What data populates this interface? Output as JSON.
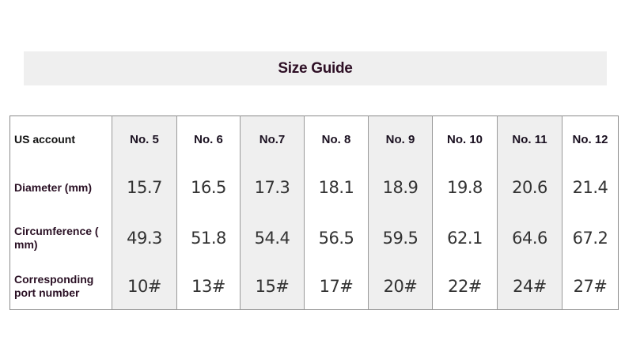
{
  "title": "Size Guide",
  "table": {
    "row_headers": [
      "US account",
      "Diameter (mm)",
      "Circumference ( mm)",
      "Corresponding port number"
    ],
    "columns": [
      "No. 5",
      "No. 6",
      "No.7",
      "No. 8",
      "No. 9",
      "No. 10",
      "No. 11",
      "No. 12"
    ],
    "diameter": [
      "15.7",
      "16.5",
      "17.3",
      "18.1",
      "18.9",
      "19.8",
      "20.6",
      "21.4"
    ],
    "circumference": [
      "49.3",
      "51.8",
      "54.4",
      "56.5",
      "59.5",
      "62.1",
      "64.6",
      "67.2"
    ],
    "port_number": [
      "10#",
      "13#",
      "15#",
      "17#",
      "20#",
      "22#",
      "24#",
      "27#"
    ]
  },
  "colors": {
    "shaded_column": "#efefef",
    "title": "#2e0f25"
  }
}
